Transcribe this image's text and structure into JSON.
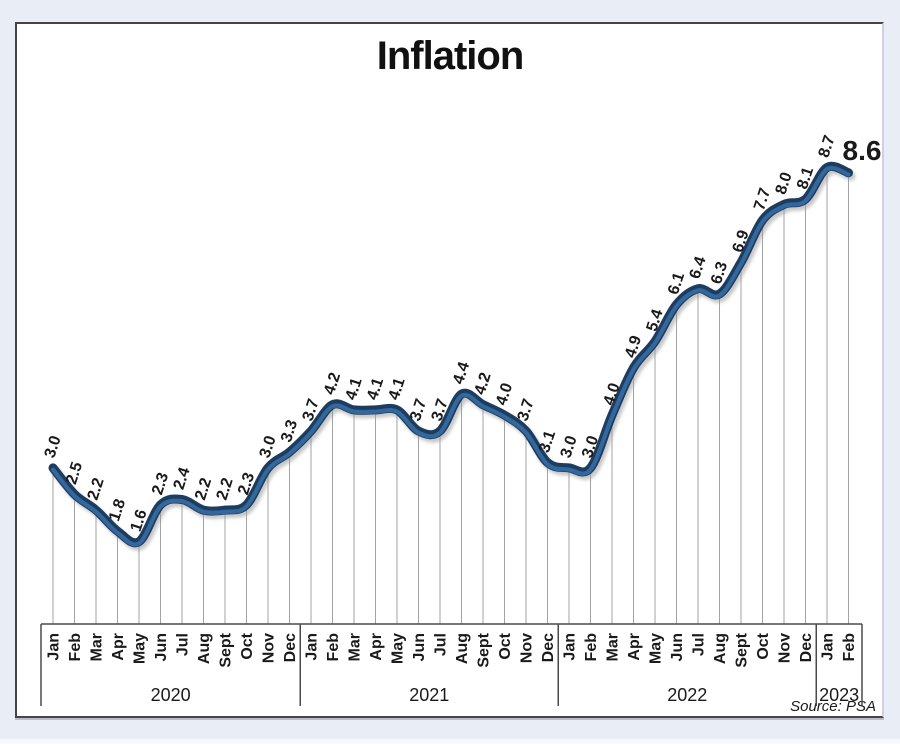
{
  "title": "Inflation",
  "source": "Source: PSA",
  "colors": {
    "background": "#e9edf6",
    "panel": "#ffffff",
    "panel_border": "#454545",
    "line_dark": "#1c3c60",
    "line_light": "#34689c",
    "line_shadow": "#9a9a9a",
    "dropline": "#a3a3a3",
    "axis": "#4a4a4a",
    "text": "#1a1a1a"
  },
  "chart_data": {
    "type": "line",
    "title": "Inflation",
    "series_name": "Inflation rate (%)",
    "ylim": [
      0,
      9.5
    ],
    "grid": "vertical dropline at every data point",
    "legend": "none",
    "xlabel": "",
    "ylabel": "",
    "groups": [
      {
        "year": "2020",
        "months": [
          "Jan",
          "Feb",
          "Mar",
          "Apr",
          "May",
          "Jun",
          "Jul",
          "Aug",
          "Sept",
          "Oct",
          "Nov",
          "Dec"
        ],
        "values": [
          3.0,
          2.5,
          2.2,
          1.8,
          1.6,
          2.3,
          2.4,
          2.2,
          2.2,
          2.3,
          3.0,
          3.3
        ]
      },
      {
        "year": "2021",
        "months": [
          "Jan",
          "Feb",
          "Mar",
          "Apr",
          "May",
          "Jun",
          "Jul",
          "Aug",
          "Sept",
          "Oct",
          "Nov",
          "Dec"
        ],
        "values": [
          3.7,
          4.2,
          4.1,
          4.1,
          4.1,
          3.7,
          3.7,
          4.4,
          4.2,
          4.0,
          3.7,
          3.1
        ]
      },
      {
        "year": "2022",
        "months": [
          "Jan",
          "Feb",
          "Mar",
          "Apr",
          "May",
          "Jun",
          "Jul",
          "Aug",
          "Sept",
          "Oct",
          "Nov",
          "Dec"
        ],
        "values": [
          3.0,
          3.0,
          4.0,
          4.9,
          5.4,
          6.1,
          6.4,
          6.3,
          6.9,
          7.7,
          8.0,
          8.1
        ]
      },
      {
        "year": "2023",
        "months": [
          "Jan",
          "Feb"
        ],
        "values": [
          8.7,
          8.6
        ]
      }
    ],
    "last_point_label": "8.6",
    "last_point_emphasized": true
  }
}
